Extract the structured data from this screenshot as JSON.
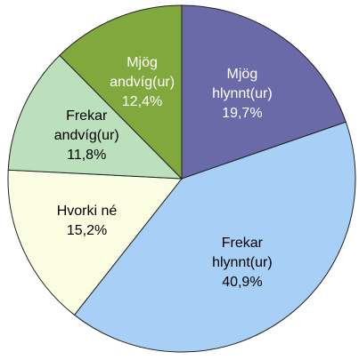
{
  "chart_data": {
    "type": "pie",
    "categories": [
      "Mjög hlynnt(ur)",
      "Frekar hlynnt(ur)",
      "Hvorki né",
      "Frekar andvíg(ur)",
      "Mjög andvíg(ur)"
    ],
    "values": [
      19.7,
      40.9,
      15.2,
      11.8,
      12.4
    ],
    "value_labels": [
      "19,7%",
      "40,9%",
      "15,2%",
      "11,8%",
      "12,4%"
    ],
    "colors": [
      "#6a6aa8",
      "#a8d0f7",
      "#fbfde3",
      "#bcdfbc",
      "#80a83c"
    ],
    "label_colors": [
      "#ffffff",
      "#000000",
      "#000000",
      "#000000",
      "#ffffff"
    ]
  }
}
